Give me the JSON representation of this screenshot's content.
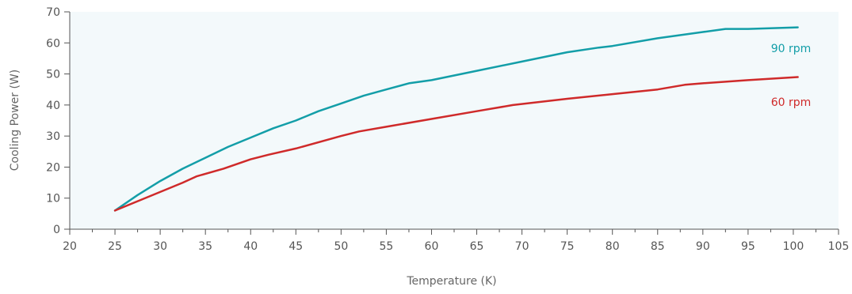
{
  "chart_data": {
    "type": "line",
    "xlabel": "Temperature (K)",
    "ylabel": "Cooling Power (W)",
    "xlim": [
      20,
      105
    ],
    "ylim": [
      0,
      70
    ],
    "xticks": [
      20,
      25,
      30,
      35,
      40,
      45,
      50,
      55,
      60,
      65,
      70,
      75,
      80,
      85,
      90,
      95,
      100,
      105
    ],
    "yticks": [
      0,
      10,
      20,
      30,
      40,
      50,
      60,
      70
    ],
    "x_minor_step": 2.5,
    "grid": false,
    "plot_background": "#f3f9fb",
    "series": [
      {
        "name": "90 rpm",
        "color": "#139ea8",
        "x": [
          25,
          27.5,
          30,
          32.5,
          35,
          37.5,
          40,
          42.5,
          45,
          47.5,
          50,
          52.5,
          55,
          57.5,
          60,
          65,
          70,
          75,
          78.5,
          80,
          85,
          90,
          92.5,
          95,
          100.5
        ],
        "y": [
          6,
          11,
          15.5,
          19.5,
          23,
          26.5,
          29.5,
          32.5,
          35,
          38,
          40.5,
          43,
          45,
          47,
          48,
          51,
          54,
          57,
          58.5,
          59,
          61.5,
          63.5,
          64.5,
          64.5,
          65
        ]
      },
      {
        "name": "60 rpm",
        "color": "#cf2a2a",
        "x": [
          25,
          27.5,
          30,
          32.5,
          34,
          37,
          40,
          42,
          45,
          50,
          52,
          55,
          60,
          65,
          69,
          75,
          80,
          85,
          88,
          90,
          95,
          100.5
        ],
        "y": [
          6,
          9,
          12,
          15,
          17,
          19.5,
          22.5,
          24,
          26,
          30,
          31.5,
          33,
          35.5,
          38,
          40,
          42,
          43.5,
          45,
          46.5,
          47,
          48,
          49
        ]
      }
    ]
  }
}
